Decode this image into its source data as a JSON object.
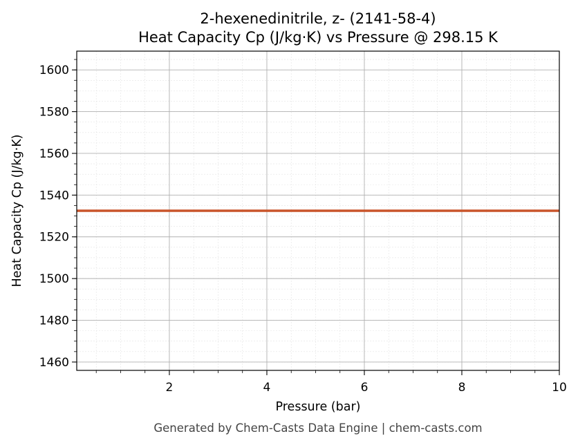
{
  "chart_data": {
    "type": "line",
    "title": "2-hexenedinitrile, z- (2141-58-4)",
    "subtitle": "Heat Capacity Cp (J/kg·K) vs Pressure @ 298.15 K",
    "xlabel": "Pressure (bar)",
    "ylabel": "Heat Capacity Cp (J/kg·K)",
    "xlim": [
      0.1,
      10
    ],
    "ylim": [
      1456,
      1609
    ],
    "xticks": [
      2,
      4,
      6,
      8,
      10
    ],
    "yticks": [
      1460,
      1480,
      1500,
      1520,
      1540,
      1560,
      1580,
      1600
    ],
    "x_minor_step": 0.5,
    "y_minor_step": 5,
    "grid": true,
    "series": [
      {
        "color": "#c9542a",
        "x": [
          0.1,
          1,
          2,
          3,
          4,
          5,
          6,
          7,
          8,
          9,
          10
        ],
        "y": [
          1532.5,
          1532.5,
          1532.5,
          1532.5,
          1532.5,
          1532.5,
          1532.5,
          1532.5,
          1532.5,
          1532.5,
          1532.5
        ]
      }
    ]
  },
  "footer": "Generated by Chem-Casts Data Engine | chem-casts.com"
}
